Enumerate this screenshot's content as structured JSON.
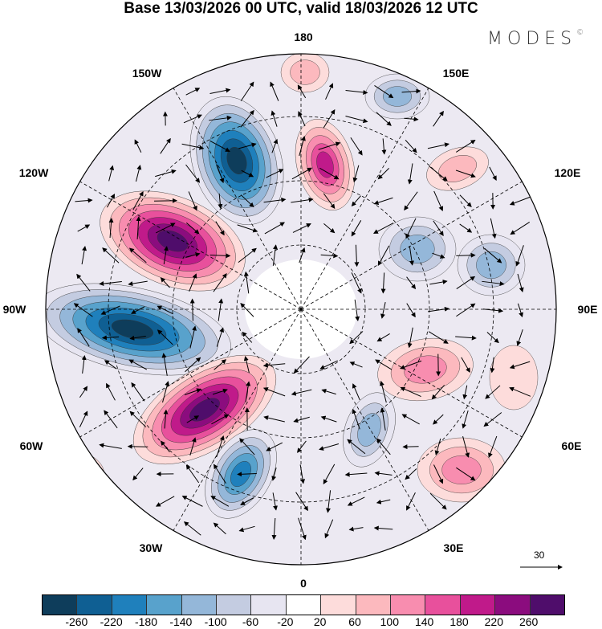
{
  "title": "Base 13/03/2026 00 UTC, valid 18/03/2026 12 UTC",
  "logo": {
    "text": "MODES",
    "mark": "©"
  },
  "longitude_labels": {
    "top": "180",
    "top_right": "150E",
    "right_upper": "120E",
    "right": "90E",
    "right_lower": "60E",
    "bottom_right": "30E",
    "bottom": "0",
    "bottom_left": "30W",
    "left_lower": "60W",
    "left": "90W",
    "left_upper": "120W",
    "top_left": "150W"
  },
  "wind_scale": {
    "value": "30"
  },
  "colorbar": {
    "colors": [
      "#0e3d5b",
      "#0f5f93",
      "#1f80bc",
      "#58a2cc",
      "#94b7d9",
      "#c4cce1",
      "#e7e5f1",
      "#ffffff",
      "#fddcdb",
      "#fcb9be",
      "#f88daf",
      "#e8509c",
      "#c01a8a",
      "#8b0c7e",
      "#4f0d6b"
    ],
    "ticks": [
      "-260",
      "-220",
      "-180",
      "-140",
      "-100",
      "-60",
      "-20",
      "20",
      "60",
      "100",
      "140",
      "180",
      "220",
      "260"
    ]
  }
}
